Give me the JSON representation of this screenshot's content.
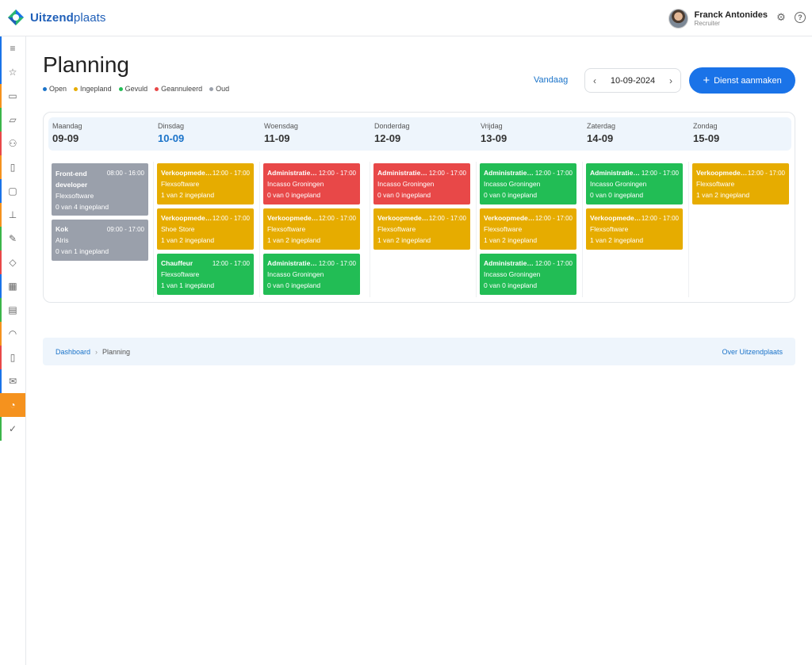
{
  "app": {
    "brand_bold": "Uitzend",
    "brand_light": "plaats"
  },
  "user": {
    "name": "Franck Antonides",
    "role": "Recruiter"
  },
  "page": {
    "title": "Planning",
    "legend": [
      {
        "label": "Open",
        "color": "#1a73c9"
      },
      {
        "label": "Ingepland",
        "color": "#e6ac00"
      },
      {
        "label": "Gevuld",
        "color": "#22bd55"
      },
      {
        "label": "Geannuleerd",
        "color": "#e84848"
      },
      {
        "label": "Oud",
        "color": "#9aa0ab"
      }
    ],
    "today_label": "Vandaag",
    "date": "10-09-2024",
    "add_button": "Dienst aanmaken"
  },
  "days": [
    {
      "name": "Maandag",
      "date": "09-09"
    },
    {
      "name": "Dinsdag",
      "date": "10-09"
    },
    {
      "name": "Woensdag",
      "date": "11-09"
    },
    {
      "name": "Donderdag",
      "date": "12-09"
    },
    {
      "name": "Vrijdag",
      "date": "13-09"
    },
    {
      "name": "Zaterdag",
      "date": "14-09"
    },
    {
      "name": "Zondag",
      "date": "15-09"
    }
  ],
  "shifts": {
    "mon": [
      {
        "title": "Front-end developer",
        "time": "08:00 - 16:00",
        "company": "Flexsoftware",
        "status": "0 van 4 ingepland"
      },
      {
        "title": "Kok",
        "time": "09:00 - 17:00",
        "company": "Alris",
        "status": "0 van 1 ingepland"
      }
    ],
    "tue": [
      {
        "title": "Verkoopmedewerker",
        "time": "12:00 - 17:00",
        "company": "Flexsoftware",
        "status": "1 van 2 ingepland"
      },
      {
        "title": "Verkoopmedewerker",
        "time": "12:00 - 17:00",
        "company": "Shoe Store",
        "status": "1 van 2 ingepland"
      },
      {
        "title": "Chauffeur",
        "time": "12:00 - 17:00",
        "company": "Flexsoftware",
        "status": "1 van 1 ingepland"
      }
    ],
    "wed": [
      {
        "title": "Administratief medewerker",
        "time": "12:00 - 17:00",
        "company": "Incasso Groningen",
        "status": "0 van 0 ingepland"
      },
      {
        "title": "Verkoopmedewerker",
        "time": "12:00 - 17:00",
        "company": "Flexsoftware",
        "status": "1 van 2 ingepland"
      },
      {
        "title": "Administratief medewerker",
        "time": "12:00 - 17:00",
        "company": "Incasso Groningen",
        "status": "0 van 0 ingepland"
      }
    ],
    "thu": [
      {
        "title": "Administratief medewerker",
        "time": "12:00 - 17:00",
        "company": "Incasso Groningen",
        "status": "0 van 0 ingepland"
      },
      {
        "title": "Verkoopmedewerker",
        "time": "12:00 - 17:00",
        "company": "Flexsoftware",
        "status": "1 van 2 ingepland"
      }
    ],
    "fri": [
      {
        "title": "Administratief medewerker",
        "time": "12:00 - 17:00",
        "company": "Incasso Groningen",
        "status": "0 van 0 ingepland"
      },
      {
        "title": "Verkoopmedewerker",
        "time": "12:00 - 17:00",
        "company": "Flexsoftware",
        "status": "1 van 2 ingepland"
      },
      {
        "title": "Administratief medewerker",
        "time": "12:00 - 17:00",
        "company": "Incasso Groningen",
        "status": "0 van 0 ingepland"
      }
    ],
    "sat": [
      {
        "title": "Administratief medewerker",
        "time": "12:00 - 17:00",
        "company": "Incasso Groningen",
        "status": "0 van 0 ingepland"
      },
      {
        "title": "Verkoopmedewerker",
        "time": "12:00 - 17:00",
        "company": "Flexsoftware",
        "status": "1 van 2 ingepland"
      }
    ],
    "sun": [
      {
        "title": "Verkoopmedewerker",
        "time": "12:00 - 17:00",
        "company": "Flexsoftware",
        "status": "1 van 2 ingepland"
      }
    ]
  },
  "breadcrumb": {
    "home": "Dashboard",
    "current": "Planning",
    "about": "Over Uitzendplaats"
  },
  "sidebar_icons": [
    "menu-icon",
    "star-icon",
    "inbox-icon",
    "folder-icon",
    "users-icon",
    "document-icon",
    "chat-icon",
    "stamp-icon",
    "edit-icon",
    "tag-icon",
    "calendar-icon",
    "report-icon",
    "rss-icon",
    "pdf-icon",
    "mail-icon",
    "clock-icon",
    "check-icon"
  ],
  "sidebar_colors": [
    "#1a73e8",
    "#1a73e8",
    "#f5921e",
    "#3bb54a",
    "#e84848",
    "#f5921e",
    "#1a73e8",
    "#f5921e",
    "#3bb54a",
    "#e84848",
    "#1a73e8",
    "#3bb54a",
    "#f5921e",
    "#e84848",
    "#1a73e8",
    "#f5921e",
    "#3bb54a"
  ]
}
